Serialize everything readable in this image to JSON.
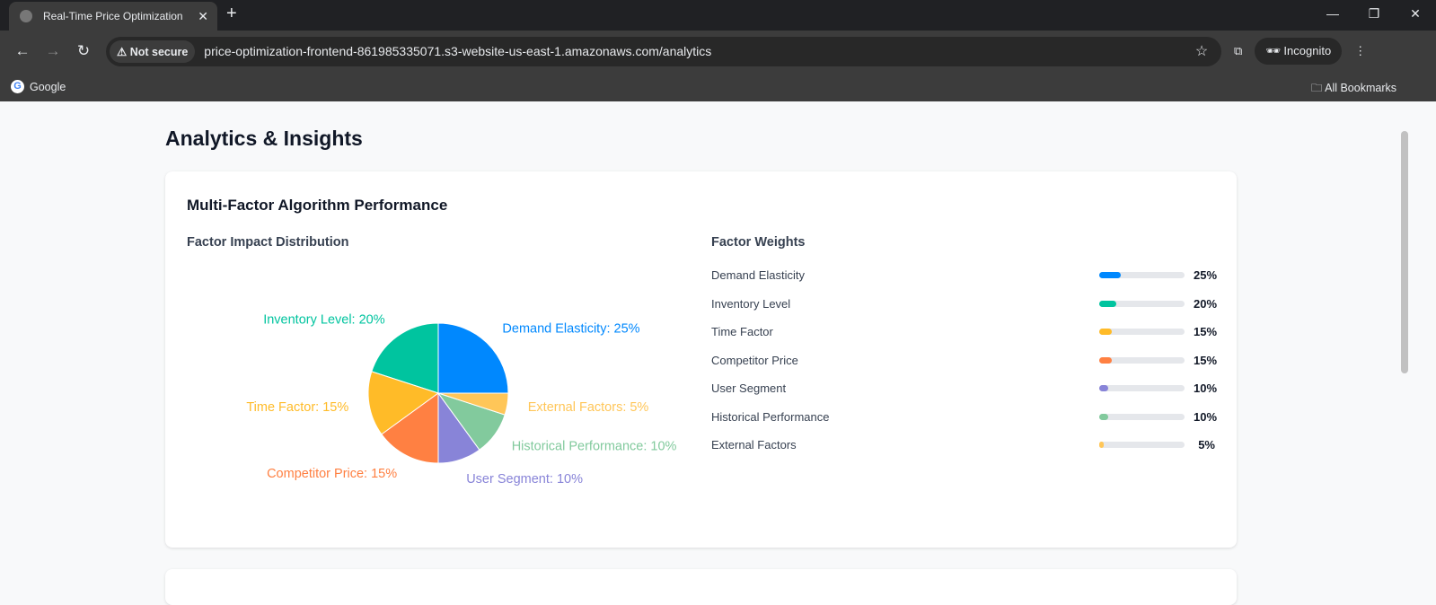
{
  "browser": {
    "tab_title": "Real-Time Price Optimization",
    "security": "Not secure",
    "url": "price-optimization-frontend-861985335071.s3-website-us-east-1.amazonaws.com/analytics",
    "profile": "Incognito",
    "bookmark": "Google",
    "all_bookmarks": "All Bookmarks"
  },
  "page": {
    "title": "Analytics & Insights",
    "card_title": "Multi-Factor Algorithm Performance",
    "pie_title": "Factor Impact Distribution",
    "weights_title": "Factor Weights"
  },
  "chart_data": {
    "type": "pie",
    "title": "Factor Impact Distribution",
    "slices": [
      {
        "name": "Demand Elasticity",
        "value": 25,
        "color": "#0088FE",
        "label": "Demand Elasticity: 25%"
      },
      {
        "name": "Inventory Level",
        "value": 20,
        "color": "#00C49F",
        "label": "Inventory Level: 20%"
      },
      {
        "name": "Time Factor",
        "value": 15,
        "color": "#FFBB28",
        "label": "Time Factor: 15%"
      },
      {
        "name": "Competitor Price",
        "value": 15,
        "color": "#FF8042",
        "label": "Competitor Price: 15%"
      },
      {
        "name": "User Segment",
        "value": 10,
        "color": "#8884D8",
        "label": "User Segment: 10%"
      },
      {
        "name": "Historical Performance",
        "value": 10,
        "color": "#82CA9D",
        "label": "Historical Performance: 10%"
      },
      {
        "name": "External Factors",
        "value": 5,
        "color": "#FFC658",
        "label": "External Factors: 5%"
      }
    ]
  },
  "weights": [
    {
      "name": "Demand Elasticity",
      "pct": "25%",
      "value": 25,
      "color": "#0088FE"
    },
    {
      "name": "Inventory Level",
      "pct": "20%",
      "value": 20,
      "color": "#00C49F"
    },
    {
      "name": "Time Factor",
      "pct": "15%",
      "value": 15,
      "color": "#FFBB28"
    },
    {
      "name": "Competitor Price",
      "pct": "15%",
      "value": 15,
      "color": "#FF8042"
    },
    {
      "name": "User Segment",
      "pct": "10%",
      "value": 10,
      "color": "#8884D8"
    },
    {
      "name": "Historical Performance",
      "pct": "10%",
      "value": 10,
      "color": "#82CA9D"
    },
    {
      "name": "External Factors",
      "pct": "5%",
      "value": 5,
      "color": "#FFC658"
    }
  ]
}
